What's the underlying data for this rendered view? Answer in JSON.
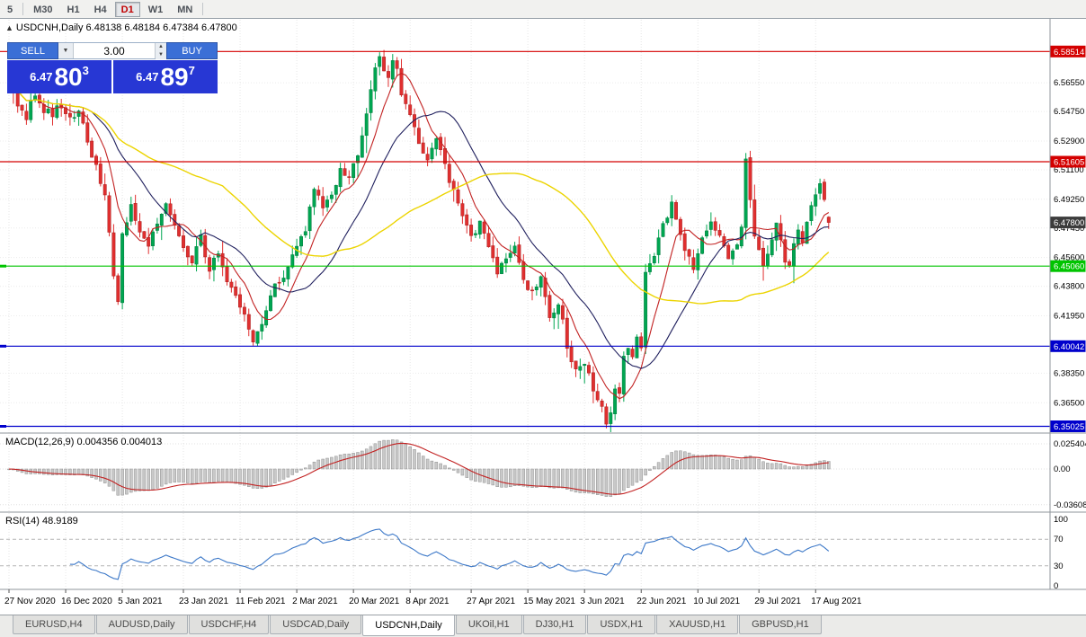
{
  "toolbar": {
    "timeframes": [
      {
        "label": "5",
        "active": false
      },
      {
        "label": "M30",
        "active": false
      },
      {
        "label": "H1",
        "active": false
      },
      {
        "label": "H4",
        "active": false
      },
      {
        "label": "D1",
        "active": true
      },
      {
        "label": "W1",
        "active": false
      },
      {
        "label": "MN",
        "active": false
      }
    ]
  },
  "chart_header": {
    "toggle_icon": "▲",
    "text": "USDCNH,Daily 6.48138 6.48184 6.47384 6.47800"
  },
  "trade_panel": {
    "sell_label": "SELL",
    "buy_label": "BUY",
    "volume": "3.00",
    "bid": {
      "prefix": "6.47",
      "main": "80",
      "sup": "3"
    },
    "ask": {
      "prefix": "6.47",
      "main": "89",
      "sup": "7"
    }
  },
  "price_axis_labels": [
    "6.56550",
    "6.54750",
    "6.52900",
    "6.51100",
    "6.49250",
    "6.47450",
    "6.45600",
    "6.43800",
    "6.41950",
    "6.38350",
    "6.36500"
  ],
  "levels": [
    {
      "label": "6.58514",
      "value": 6.58514,
      "color": "#d40000"
    },
    {
      "label": "6.51605",
      "value": 6.51605,
      "color": "#d40000"
    },
    {
      "label": "6.45060",
      "value": 6.4506,
      "color": "#00c400"
    },
    {
      "label": "6.40042",
      "value": 6.40042,
      "color": "#0000cc"
    },
    {
      "label": "6.35025",
      "value": 6.35025,
      "color": "#0000cc"
    }
  ],
  "current_price": {
    "label": "6.47800",
    "value": 6.478,
    "color": "#3c3c3c"
  },
  "macd_panel": {
    "header": "MACD(12,26,9) 0.004356 0.004013",
    "axis": [
      {
        "label": "0.025404",
        "value": 0.025404
      },
      {
        "label": "0.00",
        "value": 0
      },
      {
        "label": "-0.03608",
        "value": -0.03608
      }
    ]
  },
  "rsi_panel": {
    "header": "RSI(14) 48.9189",
    "axis": [
      {
        "label": "100",
        "value": 100
      },
      {
        "label": "70",
        "value": 70
      },
      {
        "label": "30",
        "value": 30
      },
      {
        "label": "0",
        "value": 0
      }
    ]
  },
  "date_axis": [
    "27 Nov 2020",
    "16 Dec 2020",
    "5 Jan 2021",
    "23 Jan 2021",
    "11 Feb 2021",
    "2 Mar 2021",
    "20 Mar 2021",
    "8 Apr 2021",
    "27 Apr 2021",
    "15 May 2021",
    "3 Jun 2021",
    "22 Jun 2021",
    "10 Jul 2021",
    "29 Jul 2021",
    "17 Aug 2021"
  ],
  "tabs": [
    {
      "label": "EURUSD,H4",
      "active": false
    },
    {
      "label": "AUDUSD,Daily",
      "active": false
    },
    {
      "label": "USDCHF,H4",
      "active": false
    },
    {
      "label": "USDCAD,Daily",
      "active": false
    },
    {
      "label": "USDCNH,Daily",
      "active": true
    },
    {
      "label": "UKOil,H1",
      "active": false
    },
    {
      "label": "DJ30,H1",
      "active": false
    },
    {
      "label": "USDX,H1",
      "active": false
    },
    {
      "label": "XAUUSD,H1",
      "active": false
    },
    {
      "label": "GBPUSD,H1",
      "active": false
    }
  ],
  "chart_data": {
    "type": "candlestick",
    "symbol": "USDCNH",
    "timeframe": "Daily",
    "visible_range": {
      "start": "27 Nov 2020",
      "end": "17 Aug 2021"
    },
    "num_candles": 189,
    "price_range_estimate": [
      6.346,
      6.605
    ],
    "last_candle": {
      "open": 6.48138,
      "high": 6.48184,
      "low": 6.47384,
      "close": 6.478
    },
    "horizontal_levels": [
      6.58514,
      6.51605,
      6.4506,
      6.40042,
      6.35025
    ],
    "close_anchors": [
      [
        0,
        6.57
      ],
      [
        2,
        6.552
      ],
      [
        4,
        6.545
      ],
      [
        6,
        6.56
      ],
      [
        8,
        6.548
      ],
      [
        10,
        6.545
      ],
      [
        12,
        6.552
      ],
      [
        14,
        6.542
      ],
      [
        16,
        6.548
      ],
      [
        18,
        6.53
      ],
      [
        20,
        6.512
      ],
      [
        22,
        6.498
      ],
      [
        24,
        6.445
      ],
      [
        25,
        6.428
      ],
      [
        26,
        6.47
      ],
      [
        28,
        6.488
      ],
      [
        30,
        6.47
      ],
      [
        32,
        6.462
      ],
      [
        34,
        6.478
      ],
      [
        36,
        6.49
      ],
      [
        38,
        6.478
      ],
      [
        40,
        6.462
      ],
      [
        42,
        6.455
      ],
      [
        44,
        6.47
      ],
      [
        46,
        6.448
      ],
      [
        48,
        6.458
      ],
      [
        50,
        6.44
      ],
      [
        52,
        6.43
      ],
      [
        54,
        6.418
      ],
      [
        56,
        6.405
      ],
      [
        58,
        6.412
      ],
      [
        60,
        6.432
      ],
      [
        62,
        6.442
      ],
      [
        64,
        6.45
      ],
      [
        66,
        6.462
      ],
      [
        68,
        6.475
      ],
      [
        70,
        6.498
      ],
      [
        72,
        6.486
      ],
      [
        74,
        6.498
      ],
      [
        76,
        6.51
      ],
      [
        78,
        6.505
      ],
      [
        80,
        6.52
      ],
      [
        82,
        6.545
      ],
      [
        84,
        6.572
      ],
      [
        85,
        6.583
      ],
      [
        86,
        6.575
      ],
      [
        87,
        6.568
      ],
      [
        88,
        6.578
      ],
      [
        89,
        6.572
      ],
      [
        90,
        6.558
      ],
      [
        92,
        6.545
      ],
      [
        94,
        6.53
      ],
      [
        96,
        6.518
      ],
      [
        98,
        6.53
      ],
      [
        100,
        6.512
      ],
      [
        102,
        6.498
      ],
      [
        104,
        6.482
      ],
      [
        106,
        6.47
      ],
      [
        108,
        6.478
      ],
      [
        110,
        6.462
      ],
      [
        112,
        6.445
      ],
      [
        114,
        6.455
      ],
      [
        116,
        6.462
      ],
      [
        118,
        6.442
      ],
      [
        120,
        6.435
      ],
      [
        122,
        6.442
      ],
      [
        124,
        6.42
      ],
      [
        126,
        6.428
      ],
      [
        128,
        6.402
      ],
      [
        130,
        6.385
      ],
      [
        132,
        6.392
      ],
      [
        134,
        6.372
      ],
      [
        136,
        6.36
      ],
      [
        137,
        6.352
      ],
      [
        138,
        6.358
      ],
      [
        139,
        6.372
      ],
      [
        140,
        6.368
      ],
      [
        141,
        6.392
      ],
      [
        142,
        6.4
      ],
      [
        143,
        6.395
      ],
      [
        144,
        6.405
      ],
      [
        145,
        6.398
      ],
      [
        146,
        6.448
      ],
      [
        148,
        6.458
      ],
      [
        150,
        6.478
      ],
      [
        152,
        6.488
      ],
      [
        153,
        6.478
      ],
      [
        155,
        6.458
      ],
      [
        157,
        6.45
      ],
      [
        159,
        6.468
      ],
      [
        161,
        6.48
      ],
      [
        163,
        6.47
      ],
      [
        165,
        6.455
      ],
      [
        167,
        6.462
      ],
      [
        168,
        6.475
      ],
      [
        169,
        6.52
      ],
      [
        170,
        6.49
      ],
      [
        171,
        6.472
      ],
      [
        172,
        6.458
      ],
      [
        173,
        6.45
      ],
      [
        174,
        6.456
      ],
      [
        175,
        6.468
      ],
      [
        176,
        6.476
      ],
      [
        177,
        6.468
      ],
      [
        178,
        6.455
      ],
      [
        179,
        6.45
      ],
      [
        180,
        6.462
      ],
      [
        181,
        6.472
      ],
      [
        182,
        6.468
      ],
      [
        183,
        6.476
      ],
      [
        184,
        6.486
      ],
      [
        185,
        6.497
      ],
      [
        186,
        6.505
      ],
      [
        187,
        6.492
      ],
      [
        188,
        6.478
      ]
    ],
    "noise_seed": 42,
    "noise": {
      "close": 0.003,
      "wick": 0.006
    },
    "moving_averages": [
      {
        "period": 8,
        "color": "#c22222"
      },
      {
        "period": 20,
        "color": "#20205e"
      },
      {
        "period": 50,
        "color": "#ecd400"
      }
    ],
    "macd": {
      "fast": 12,
      "slow": 26,
      "signal": 9,
      "current": 0.004356,
      "signal_current": 0.004013,
      "range": [
        -0.03608,
        0.025404
      ]
    },
    "rsi": {
      "period": 14,
      "current": 48.9189,
      "levels": [
        70,
        30
      ],
      "range": [
        0,
        100
      ]
    }
  }
}
